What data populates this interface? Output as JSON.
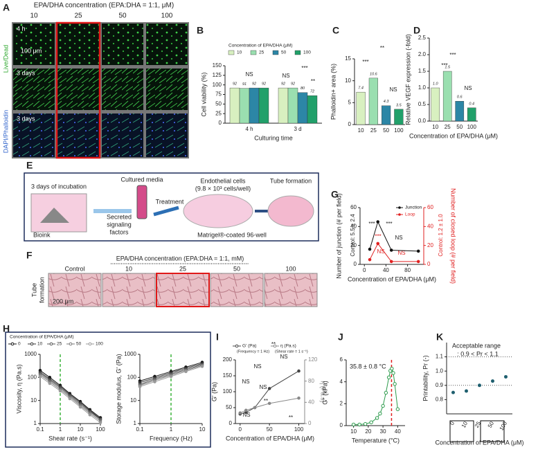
{
  "panel_labels": [
    "A",
    "B",
    "C",
    "D",
    "E",
    "F",
    "G",
    "H",
    "I",
    "J",
    "K"
  ],
  "panel_a": {
    "title": "EPA/DHA concentration (EPA:DHA = 1:1, μM)",
    "columns": [
      "10",
      "25",
      "50",
      "100"
    ],
    "rows": [
      "4 h",
      "3 days",
      "3 days"
    ],
    "scale": "100 μm",
    "side_labels": [
      "Live/Dead",
      "DAPI/Phalloidin"
    ]
  },
  "panel_e": {
    "texts": [
      "3 days of incubation",
      "Cultured media",
      "Treatment",
      "Endothelial cells",
      "(9.8 × 10³ cells/well)",
      "Tube formation",
      "Bioink",
      "Secreted",
      "signaling",
      "factors",
      "Matrigel®-coated 96-well"
    ]
  },
  "panel_f": {
    "title": "EPA/DHA concentration (EPA:DHA = 1:1, mM)",
    "columns": [
      "Control",
      "10",
      "25",
      "50",
      "100"
    ],
    "row_label": [
      "Tube",
      "formation"
    ],
    "scale": "200 μm"
  },
  "chart_data": [
    {
      "type": "bar",
      "ylabel": "Cell viability (%)",
      "xlabel": "Culturing time",
      "legend_title": "Concentration of EPA/DHA (μM)",
      "legend": "top",
      "categories": [
        "4 h",
        "3 d"
      ],
      "series": [
        {
          "name": "10",
          "color": "#d8f0c0",
          "values": [
            92,
            92
          ]
        },
        {
          "name": "25",
          "color": "#9adfb0",
          "values": [
            91,
            92
          ]
        },
        {
          "name": "50",
          "color": "#2c86a6",
          "values": [
            92,
            80
          ]
        },
        {
          "name": "100",
          "color": "#21a06a",
          "values": [
            92,
            72
          ]
        }
      ],
      "ylim": [
        0,
        150
      ],
      "yticks": [
        0,
        25,
        50,
        75,
        100,
        125,
        150
      ],
      "annotations": [
        "NS",
        "NS",
        "***",
        "**"
      ]
    },
    {
      "type": "bar",
      "ylabel": "Phalloidin+ area (%)",
      "categories": [
        "10",
        "25",
        "50",
        "100"
      ],
      "values": [
        7.4,
        10.6,
        4.3,
        3.5
      ],
      "colors": [
        "#d8f0c0",
        "#9adfb0",
        "#2c86a6",
        "#21a06a"
      ],
      "ylim": [
        0,
        15
      ],
      "yticks": [
        0,
        5,
        10,
        15
      ],
      "annotations": [
        "***",
        "**",
        "NS"
      ]
    },
    {
      "type": "bar",
      "ylabel": "Relative VEGF expression (-fold)",
      "xlabel": "Concentration of EPA/DHA (μM)",
      "categories": [
        "10",
        "25",
        "50",
        "100"
      ],
      "values": [
        1.0,
        1.5,
        0.6,
        0.4
      ],
      "value_labels": [
        "1.0",
        "1.5",
        "0.6",
        "0.4"
      ],
      "colors": [
        "#d8f0c0",
        "#9adfb0",
        "#2c86a6",
        "#21a06a"
      ],
      "ylim": [
        0,
        2.5
      ],
      "yticks": [
        {
          "value": 0,
          "label": "0.0"
        },
        0.5,
        {
          "value": 1,
          "label": "1.0"
        },
        1.5,
        {
          "value": 2,
          "label": "2.0"
        },
        2.5
      ],
      "annotations": [
        "***",
        "***",
        "NS"
      ]
    },
    {
      "type": "line",
      "ylabel": "Number of junction (# per field)",
      "y2label": "Number of closed loop (# per field)",
      "xlabel": "Concentration of EPA/DHA (μM)",
      "legend": "upper right",
      "x": [
        10,
        25,
        50,
        100
      ],
      "series": [
        {
          "name": "Junction",
          "color": "#111111",
          "values": [
            16,
            45,
            15,
            14
          ]
        },
        {
          "name": "Loop",
          "color": "#e02020",
          "axis": "y2",
          "values": [
            5,
            22,
            3,
            3
          ]
        }
      ],
      "xlim": [
        -8,
        110
      ],
      "xticks": [
        0,
        40,
        80
      ],
      "ylim": [
        0,
        60
      ],
      "yticks": [
        0,
        20,
        40,
        60
      ],
      "y2lim": [
        0,
        60
      ],
      "y2ticks": [
        0,
        20,
        40,
        60
      ],
      "annotations": [
        "***",
        "***",
        "NS",
        "***",
        "NS",
        "NS",
        "Control: 5.5 ± 2.4",
        "Control: 1.2 ± 1.0"
      ]
    },
    {
      "type": "line",
      "ylabel": "Viscosity, η (Pa.s)",
      "xlabel": "Shear rate (s⁻¹)",
      "legend_title": "Concentration of EPA/DHA (μM)",
      "legend": "top",
      "xscale": "log",
      "yscale": "log",
      "vline_x": 1,
      "vline_color": "#3cb43c",
      "x": [
        0.1,
        0.3,
        1,
        3,
        10,
        30,
        100
      ],
      "series": [
        {
          "name": "0",
          "color": "#111111",
          "values": [
            200,
            100,
            45,
            20,
            9,
            4,
            1.8
          ]
        },
        {
          "name": "10",
          "color": "#333333",
          "values": [
            170,
            85,
            40,
            18,
            8,
            3.6,
            1.6
          ]
        },
        {
          "name": "25",
          "color": "#555555",
          "values": [
            150,
            75,
            35,
            16,
            7,
            3.2,
            1.5
          ]
        },
        {
          "name": "50",
          "color": "#777777",
          "values": [
            130,
            65,
            30,
            14,
            6,
            2.8,
            1.3
          ]
        },
        {
          "name": "100",
          "color": "#999999",
          "values": [
            110,
            55,
            26,
            12,
            5.2,
            2.4,
            1.1
          ]
        }
      ],
      "xlim": [
        0.1,
        100
      ],
      "xticks": [
        0.1,
        1,
        10,
        100
      ],
      "ylim": [
        1,
        1000
      ],
      "yticks": [
        1,
        10,
        100,
        1000
      ]
    },
    {
      "type": "line",
      "ylabel": "Storage modulus, G' (Pa)",
      "xlabel": "Frequency (Hz)",
      "xscale": "log",
      "yscale": "log",
      "vline_x": 1,
      "vline_color": "#3cb43c",
      "x": [
        0.1,
        0.3,
        1,
        3,
        10
      ],
      "series": [
        {
          "name": "0",
          "color": "#111111",
          "values": [
            70,
            110,
            180,
            280,
            450
          ]
        },
        {
          "name": "10",
          "color": "#333333",
          "values": [
            60,
            95,
            160,
            250,
            400
          ]
        },
        {
          "name": "25",
          "color": "#555555",
          "values": [
            50,
            85,
            140,
            220,
            360
          ]
        },
        {
          "name": "50",
          "color": "#777777",
          "values": [
            45,
            75,
            125,
            200,
            330
          ]
        },
        {
          "name": "100",
          "color": "#999999",
          "values": [
            40,
            65,
            110,
            180,
            300
          ]
        }
      ],
      "xlim": [
        0.1,
        10
      ],
      "xticks": [
        0.1,
        1,
        10
      ],
      "ylim": [
        1,
        1000
      ],
      "yticks": [
        1,
        10,
        100,
        1000
      ]
    },
    {
      "type": "line",
      "ylabel": "G' (Pa)",
      "y2label": "η (Pa.s)",
      "xlabel": "Concentration of EPA/DHA (μM)",
      "legend": "top",
      "legend_notes": [
        "(Frequency = 1 Hz)",
        "(Shear rate = 1 s⁻¹)"
      ],
      "x": [
        0,
        10,
        25,
        50,
        100
      ],
      "series": [
        {
          "name": "G' (Pa)",
          "color": "#444444",
          "values": [
            30,
            35,
            50,
            110,
            165
          ]
        },
        {
          "name": "η (Pa.s)",
          "color": "#888888",
          "axis": "y2",
          "values": [
            20,
            25,
            30,
            38,
            48
          ]
        }
      ],
      "xlim": [
        -8,
        110
      ],
      "xticks": [
        0,
        50,
        100
      ],
      "ylim": [
        0,
        200
      ],
      "yticks": [
        0,
        50,
        100,
        150,
        200
      ],
      "y2lim": [
        0,
        120
      ],
      "y2ticks": [
        0,
        40,
        80,
        120
      ],
      "annotations": [
        "**",
        "NS",
        "NS",
        "NS",
        "NS",
        "NS",
        "**",
        "**"
      ]
    },
    {
      "type": "line",
      "ylabel": "G'' (kPa)",
      "xlabel": "Temperature (°C)",
      "marker": "open",
      "vline_x": 35.8,
      "vline_color": "#e02020",
      "annotations": [
        "35.8 ± 0.8 °C"
      ],
      "x": [
        10,
        14,
        18,
        22,
        26,
        28,
        30,
        32,
        34,
        35,
        36,
        37,
        38,
        40
      ],
      "series": [
        {
          "name": "G''",
          "color": "#2a9a4a",
          "values": [
            0.1,
            0.1,
            0.15,
            0.3,
            0.7,
            1.1,
            1.8,
            3.0,
            4.4,
            5.0,
            5.2,
            4.8,
            3.8,
            1.5
          ]
        }
      ],
      "xlim": [
        5,
        45
      ],
      "xticks": [
        10,
        20,
        30,
        40
      ],
      "ylim": [
        0,
        6
      ],
      "yticks": [
        0,
        2,
        4,
        6
      ]
    },
    {
      "type": "scatter",
      "ylabel": "Printability, Pr (-)",
      "xlabel": "Concentration of EPA/DHA (μM)",
      "categories": [
        "0",
        "10",
        "25",
        "50",
        "100"
      ],
      "ref_lines": [
        0.9,
        1.1
      ],
      "series": [
        {
          "name": "Pr",
          "color": "#1f5f6f",
          "values": [
            0.85,
            0.86,
            0.9,
            0.93,
            0.96
          ]
        }
      ],
      "ylim": [
        0.7,
        1.2
      ],
      "yticks": [
        {
          "value": 0.8,
          "label": "0.8"
        },
        0.9,
        {
          "value": 1,
          "label": "1.0"
        },
        1.1
      ],
      "annotations": [
        "Acceptable range",
        ": 0.9 < Pr < 1.1"
      ]
    }
  ]
}
